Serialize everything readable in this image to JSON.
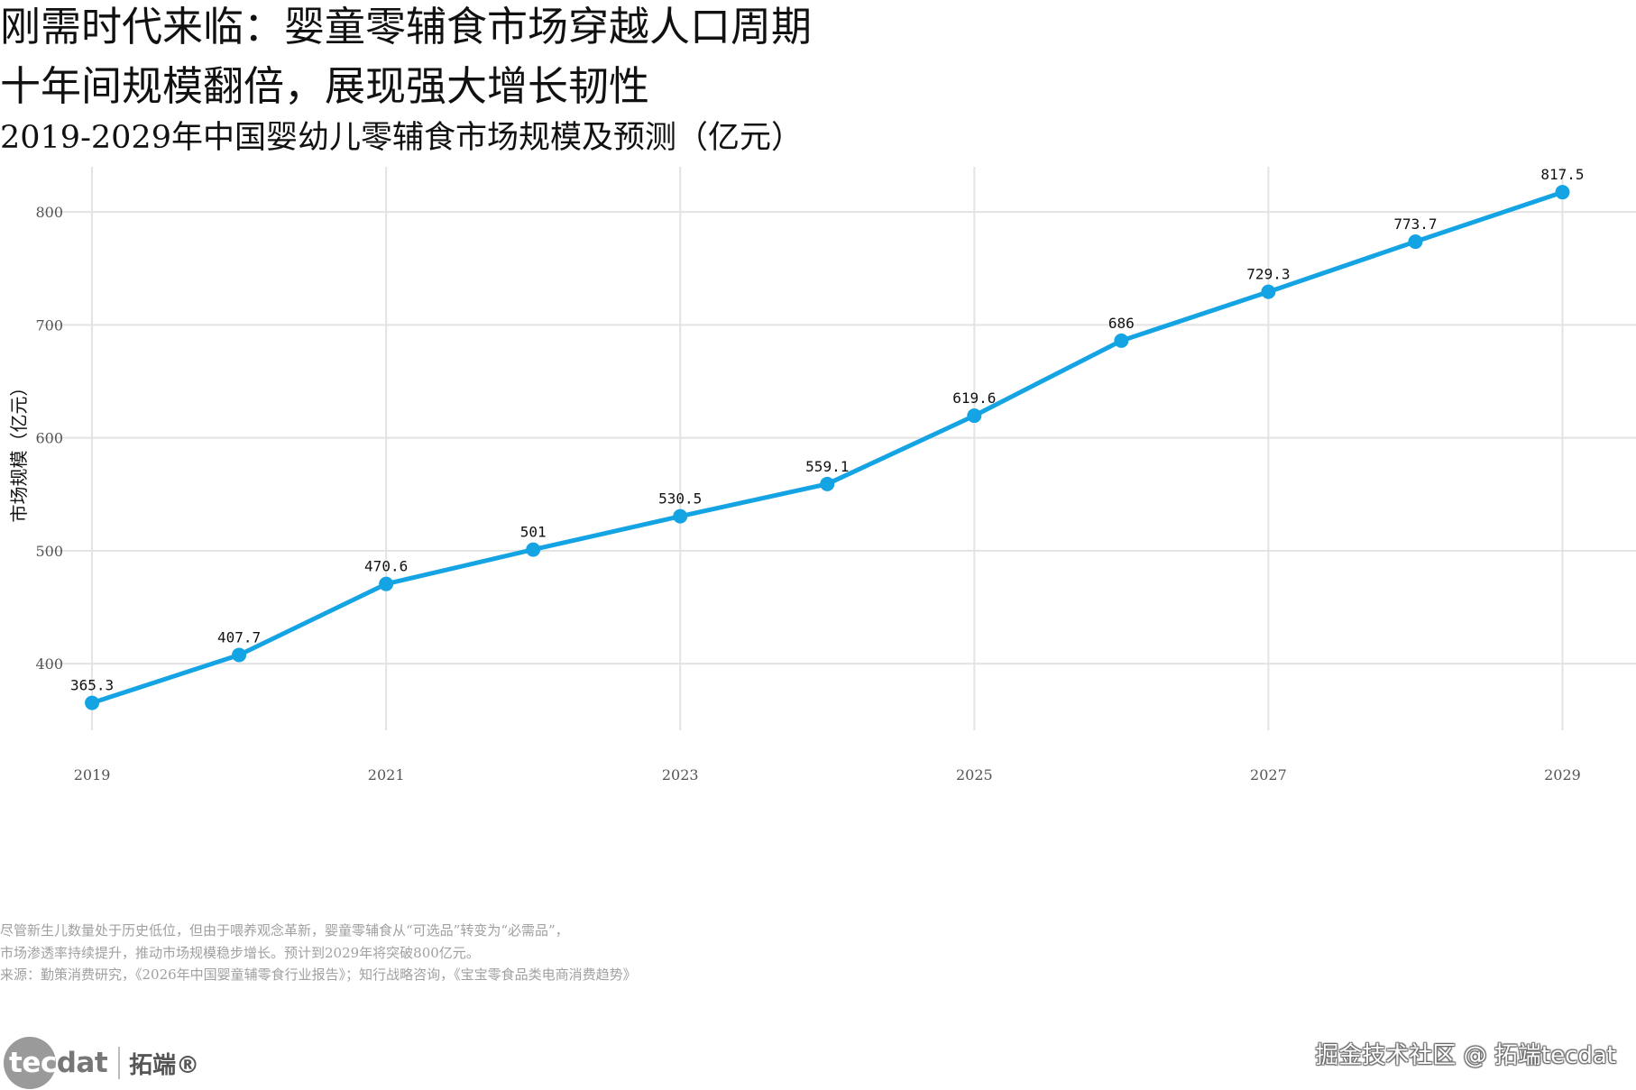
{
  "header": {
    "title_line1": "刚需时代来临：婴童零辅食市场穿越人口周期",
    "title_line2": "十年间规模翻倍，展现强大增长韧性",
    "subtitle": "2019-2029年中国婴幼儿零辅食市场规模及预测（亿元）"
  },
  "chart_data": {
    "type": "line",
    "x": [
      2019,
      2020,
      2021,
      2022,
      2023,
      2024,
      2025,
      2026,
      2027,
      2028,
      2029
    ],
    "values": [
      365.3,
      407.7,
      470.6,
      501,
      530.5,
      559.1,
      619.6,
      686,
      729.3,
      773.7,
      817.5
    ],
    "value_labels": [
      "365.3",
      "407.7",
      "470.6",
      "501",
      "530.5",
      "559.1",
      "619.6",
      "686",
      "729.3",
      "773.7",
      "817.5"
    ],
    "xticks": [
      "2019",
      "2021",
      "2023",
      "2025",
      "2027",
      "2029"
    ],
    "xtick_values": [
      2019,
      2021,
      2023,
      2025,
      2027,
      2029
    ],
    "yticks": [
      "400",
      "500",
      "600",
      "700",
      "800"
    ],
    "ytick_values": [
      400,
      500,
      600,
      700,
      800
    ],
    "ylabel": "市场规模（亿元）",
    "xlabel": "",
    "xlim": [
      2018.65,
      2029.5
    ],
    "ylim": [
      341,
      840
    ],
    "grid": true,
    "line_color": "#14A3E3"
  },
  "notes": {
    "line1": "尽管新生儿数量处于历史低位，但由于喂养观念革新，婴童零辅食从“可选品”转变为“必需品”，",
    "line2": "市场渗透率持续提升，推动市场规模稳步增长。预计到2029年将突破800亿元。",
    "source": "来源：勤策消费研究，《2026年中国婴童辅零食行业报告》；知行战略咨询，《宝宝零食品类电商消费趋势》"
  },
  "branding": {
    "logo_text_main": "tec",
    "logo_text_tail": "dat",
    "logo_cn": "拓端®",
    "watermark": "掘金技术社区 @ 拓端tecdat"
  }
}
